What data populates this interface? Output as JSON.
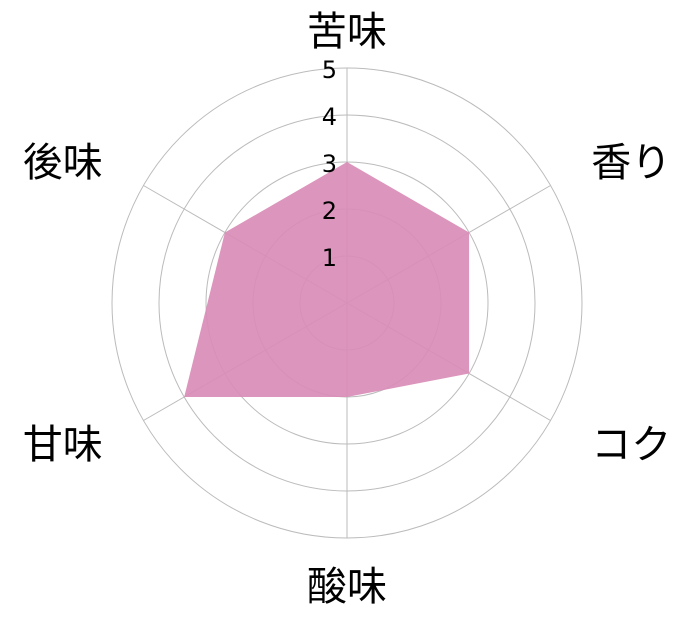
{
  "chart_data": {
    "type": "radar",
    "categories": [
      "苦味",
      "香り",
      "コク",
      "酸味",
      "甘味",
      "後味"
    ],
    "values": [
      3,
      3,
      3,
      2,
      4,
      3
    ],
    "rlim": [
      0,
      5
    ],
    "ticks": [
      "1",
      "2",
      "3",
      "4",
      "5"
    ],
    "grid": true,
    "colors": {
      "fill": "#d98cb6",
      "grid": "#bbbbbb"
    }
  }
}
